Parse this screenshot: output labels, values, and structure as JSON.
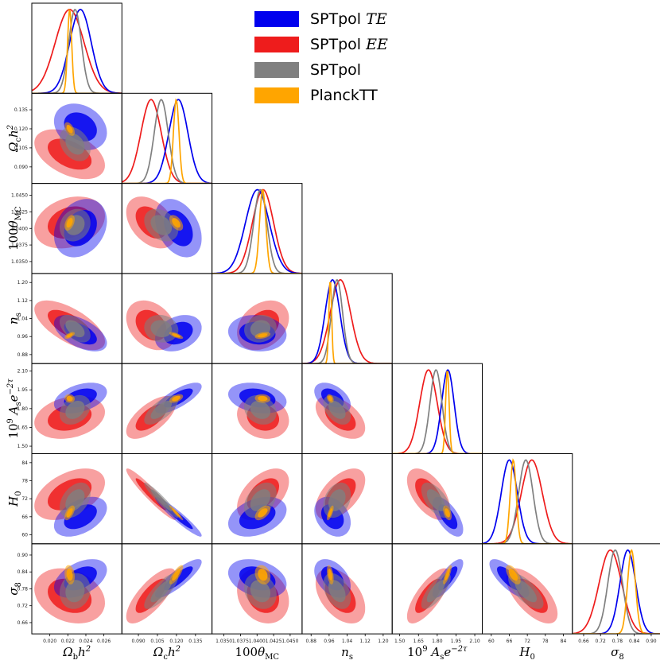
{
  "chart_data": {
    "type": "corner-triangle",
    "description_type": "triangle plot of 1D and 2D marginalized posteriors",
    "colors": {
      "SPTpol TE": "#0000ee",
      "SPTpol EE": "#ee1c1c",
      "SPTpol": "#808080",
      "PlanckTT": "#ffa500"
    },
    "legend": {
      "placement": "top-right",
      "entries": [
        {
          "label": "SPTpol TE",
          "color": "#0000ee"
        },
        {
          "label": "SPTpol EE",
          "color": "#ee1c1c"
        },
        {
          "label": "SPTpol",
          "color": "#808080"
        },
        {
          "label": "PlanckTT",
          "color": "#ffa500"
        }
      ]
    },
    "parameters": [
      {
        "label": "Ω_b h²",
        "range": [
          0.018,
          0.028
        ],
        "ticks": [
          "0.020",
          "0.022",
          "0.024",
          "0.026"
        ]
      },
      {
        "label": "Ω_c h²",
        "range": [
          0.077,
          0.148
        ],
        "ticks": [
          "0.090",
          "0.105",
          "0.120",
          "0.135"
        ]
      },
      {
        "label": "100θ_MC",
        "range": [
          1.0332,
          1.0468
        ],
        "ticks": [
          "1.0350",
          "1.0375",
          "1.0400",
          "1.0425",
          "1.0450"
        ]
      },
      {
        "label": "n_s",
        "range": [
          0.84,
          1.24
        ],
        "ticks": [
          "0.88",
          "0.96",
          "1.04",
          "1.12",
          "1.20"
        ]
      },
      {
        "label": "10⁹ A_s e^{-2τ}",
        "range": [
          1.44,
          2.16
        ],
        "ticks": [
          "1.50",
          "1.65",
          "1.80",
          "1.95",
          "2.10"
        ]
      },
      {
        "label": "H_0",
        "range": [
          57.0,
          87.0
        ],
        "ticks": [
          "60",
          "66",
          "72",
          "78",
          "84"
        ]
      },
      {
        "label": "σ_8",
        "range": [
          0.62,
          0.94
        ],
        "ticks": [
          "0.66",
          "0.72",
          "0.78",
          "0.84",
          "0.90"
        ]
      }
    ],
    "series": [
      {
        "name": "SPTpol TE",
        "mean": [
          0.0234,
          0.1215,
          1.04005,
          0.975,
          1.885,
          66.0,
          0.817
        ],
        "sigma": [
          0.0012,
          0.0075,
          0.0018,
          0.033,
          0.05,
          2.7,
          0.028
        ]
      },
      {
        "name": "SPTpol EE",
        "mean": [
          0.0222,
          0.1,
          1.0409,
          1.01,
          1.73,
          73.5,
          0.755
        ],
        "sigma": [
          0.0016,
          0.008,
          0.0016,
          0.045,
          0.07,
          3.5,
          0.04
        ]
      },
      {
        "name": "SPTpol",
        "mean": [
          0.0228,
          0.108,
          1.0405,
          0.995,
          1.79,
          71.5,
          0.772
        ],
        "sigma": [
          0.0007,
          0.0055,
          0.001,
          0.025,
          0.048,
          2.4,
          0.026
        ]
      },
      {
        "name": "PlanckTT",
        "mean": [
          0.0222,
          0.1198,
          1.04085,
          0.965,
          1.881,
          67.3,
          0.83
        ],
        "sigma": [
          0.00023,
          0.0022,
          0.00048,
          0.0062,
          0.014,
          1.0,
          0.014
        ]
      }
    ],
    "correlations": {
      "SPTpol TE": [
        [
          1,
          -0.25,
          0.25,
          -0.55,
          0.4,
          0.45,
          0.45
        ],
        [
          -0.25,
          1,
          -0.35,
          0.3,
          0.75,
          -0.95,
          0.85
        ],
        [
          0.25,
          -0.35,
          1,
          -0.1,
          -0.25,
          0.35,
          -0.3
        ],
        [
          -0.55,
          0.3,
          -0.1,
          1,
          -0.45,
          -0.3,
          -0.4
        ],
        [
          0.4,
          0.75,
          -0.25,
          -0.45,
          1,
          -0.65,
          0.8
        ],
        [
          0.45,
          -0.95,
          0.35,
          -0.3,
          -0.65,
          1,
          -0.75
        ],
        [
          0.45,
          0.85,
          -0.3,
          -0.4,
          0.8,
          -0.75,
          1
        ]
      ],
      "SPTpol EE": [
        [
          1,
          -0.45,
          0.25,
          -0.65,
          0.25,
          0.45,
          -0.25
        ],
        [
          -0.45,
          1,
          -0.4,
          -0.3,
          0.65,
          -0.95,
          0.75
        ],
        [
          0.25,
          -0.4,
          1,
          0.3,
          -0.15,
          0.5,
          -0.2
        ],
        [
          -0.65,
          -0.3,
          0.3,
          1,
          -0.5,
          0.55,
          -0.45
        ],
        [
          0.25,
          0.65,
          -0.15,
          -0.5,
          1,
          -0.55,
          0.75
        ],
        [
          0.45,
          -0.95,
          0.5,
          0.55,
          -0.55,
          1,
          -0.65
        ],
        [
          -0.25,
          0.75,
          -0.2,
          -0.45,
          0.75,
          -0.65,
          1
        ]
      ],
      "SPTpol": [
        [
          1,
          -0.3,
          0.15,
          -0.5,
          0.3,
          0.4,
          0.1
        ],
        [
          -0.3,
          1,
          -0.3,
          -0.1,
          0.7,
          -0.95,
          0.8
        ],
        [
          0.15,
          -0.3,
          1,
          0.1,
          -0.2,
          0.4,
          -0.2
        ],
        [
          -0.5,
          -0.1,
          0.1,
          1,
          -0.45,
          0.3,
          -0.4
        ],
        [
          0.3,
          0.7,
          -0.2,
          -0.45,
          1,
          -0.6,
          0.75
        ],
        [
          0.4,
          -0.95,
          0.4,
          0.3,
          -0.6,
          1,
          -0.7
        ],
        [
          0.1,
          0.8,
          -0.2,
          -0.4,
          0.75,
          -0.7,
          1
        ]
      ],
      "PlanckTT": [
        [
          1,
          -0.5,
          0.45,
          0.6,
          -0.1,
          0.6,
          -0.2
        ],
        [
          -0.5,
          1,
          -0.5,
          -0.7,
          0.5,
          -0.95,
          0.8
        ],
        [
          0.45,
          -0.5,
          1,
          0.4,
          -0.1,
          0.55,
          -0.2
        ],
        [
          0.6,
          -0.7,
          0.4,
          1,
          -0.3,
          0.7,
          -0.4
        ],
        [
          -0.1,
          0.5,
          -0.1,
          -0.3,
          1,
          -0.45,
          0.8
        ],
        [
          0.6,
          -0.95,
          0.55,
          0.7,
          -0.45,
          1,
          -0.6
        ],
        [
          -0.2,
          0.8,
          -0.2,
          -0.4,
          0.8,
          -0.6,
          1
        ]
      ]
    },
    "contour_levels": [
      "68%",
      "95%"
    ],
    "grid": false
  }
}
